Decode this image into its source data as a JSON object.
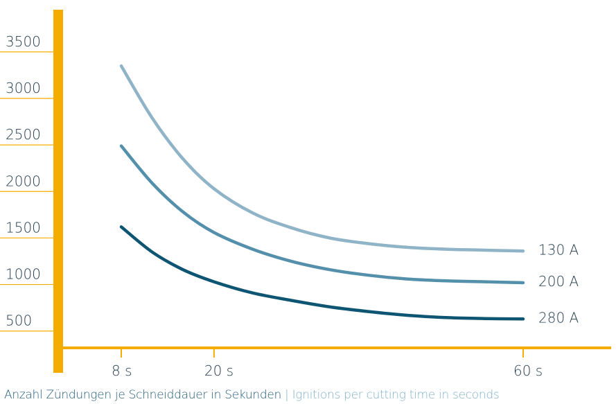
{
  "chart_data": {
    "type": "line",
    "title": "",
    "xlabel": "",
    "ylabel": "",
    "xlim": [
      0,
      67
    ],
    "ylim": [
      200,
      3700
    ],
    "x_ticks": [
      {
        "value": 8,
        "label": "8 s"
      },
      {
        "value": 20,
        "label": "20 s"
      },
      {
        "value": 60,
        "label": "60 s"
      }
    ],
    "y_ticks": [
      {
        "value": 500,
        "label": "500"
      },
      {
        "value": 1000,
        "label": "1000"
      },
      {
        "value": 1500,
        "label": "1500"
      },
      {
        "value": 2000,
        "label": "2000"
      },
      {
        "value": 2500,
        "label": "2500"
      },
      {
        "value": 3000,
        "label": "3000"
      },
      {
        "value": 3500,
        "label": "3500"
      }
    ],
    "grid": "horizontal gridlines at y ticks",
    "legend": "labels at right end of each line",
    "series": [
      {
        "name": "130 A",
        "color": "#8fb3c7",
        "x": [
          8,
          12,
          16,
          20,
          25,
          30,
          35,
          40,
          45,
          50,
          55,
          60
        ],
        "y": [
          3260,
          2700,
          2260,
          1940,
          1680,
          1520,
          1410,
          1350,
          1310,
          1290,
          1280,
          1270
        ]
      },
      {
        "name": "200 A",
        "color": "#5490ab",
        "x": [
          8,
          12,
          16,
          20,
          25,
          30,
          35,
          40,
          45,
          50,
          55,
          60
        ],
        "y": [
          2400,
          2000,
          1690,
          1470,
          1290,
          1160,
          1070,
          1010,
          970,
          950,
          940,
          930
        ]
      },
      {
        "name": "280 A",
        "color": "#0d5573",
        "x": [
          8,
          12,
          16,
          20,
          25,
          30,
          35,
          40,
          45,
          50,
          55,
          60
        ],
        "y": [
          1530,
          1260,
          1070,
          940,
          820,
          740,
          670,
          620,
          580,
          555,
          545,
          540
        ]
      }
    ]
  },
  "caption": {
    "german": "Anzahl Zündungen je Schneiddauer in Sekunden",
    "separator": " | ",
    "english": "Ignitions per cutting time in seconds"
  },
  "colors": {
    "axis": "#f5ac00",
    "grid": "#f5ac00",
    "tick_text": "#1f3a4a"
  }
}
